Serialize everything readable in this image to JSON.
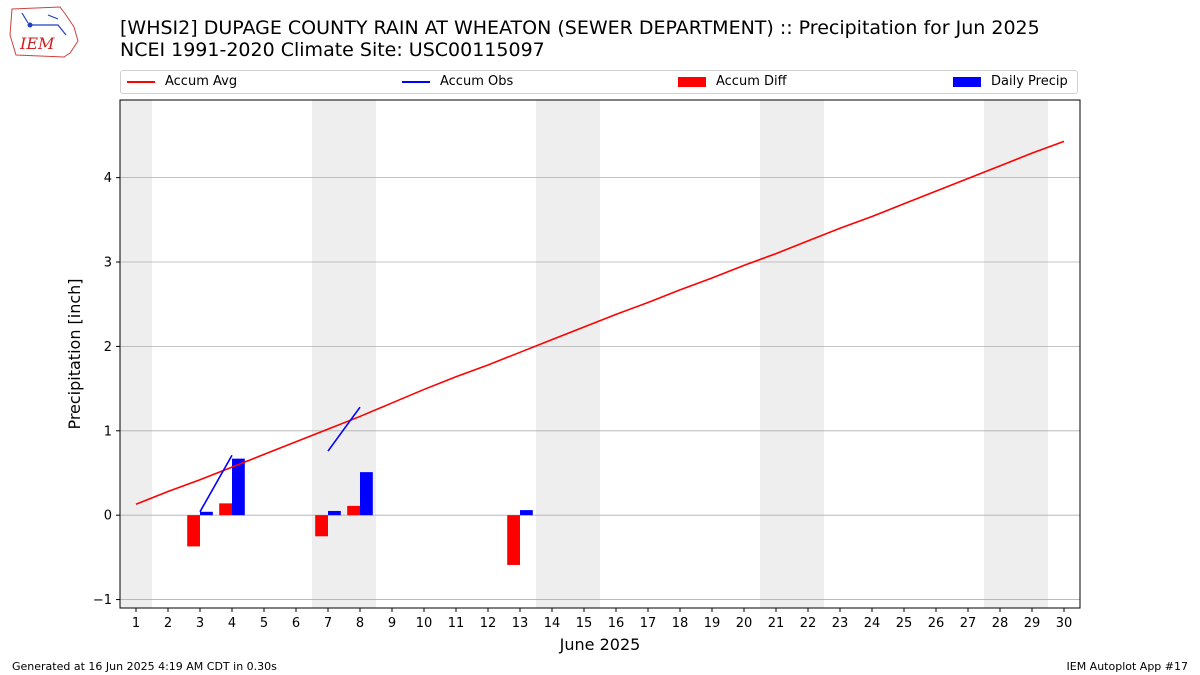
{
  "header": {
    "title_line1": "[WHSI2] DUPAGE COUNTY RAIN AT WHEATON (SEWER DEPARTMENT) :: Precipitation for Jun 2025",
    "title_line2": "NCEI 1991-2020 Climate Site: USC00115097",
    "logo_text": "IEM"
  },
  "footer": {
    "left": "Generated at 16 Jun 2025 4:19 AM CDT in 0.30s",
    "right": "IEM Autoplot App #17"
  },
  "colors": {
    "accum_avg": "#ff0000",
    "accum_obs": "#0000ff",
    "accum_diff": "#ff0000",
    "daily_precip": "#0000ff",
    "weekend_shade": "#eeeeee",
    "grid": "#b0b0b0"
  },
  "chart_data": {
    "type": "bar",
    "xlabel": "June 2025",
    "ylabel": "Precipitation [inch]",
    "xlim": [
      0.5,
      30.5
    ],
    "ylim": [
      -1.1,
      4.92
    ],
    "x_ticks": [
      1,
      2,
      3,
      4,
      5,
      6,
      7,
      8,
      9,
      10,
      11,
      12,
      13,
      14,
      15,
      16,
      17,
      18,
      19,
      20,
      21,
      22,
      23,
      24,
      25,
      26,
      27,
      28,
      29,
      30
    ],
    "y_ticks": [
      -1,
      0,
      1,
      2,
      3,
      4
    ],
    "grid": "horizontal",
    "legend": {
      "placement": "top",
      "entries": [
        {
          "label": "Accum Avg",
          "kind": "line",
          "color": "#ff0000"
        },
        {
          "label": "Accum Obs",
          "kind": "line",
          "color": "#0000ff"
        },
        {
          "label": "Accum Diff",
          "kind": "bar",
          "color": "#ff0000"
        },
        {
          "label": "Daily Precip",
          "kind": "bar",
          "color": "#0000ff"
        }
      ]
    },
    "weekend_shading": [
      [
        0.5,
        1.5
      ],
      [
        6.5,
        8.5
      ],
      [
        13.5,
        15.5
      ],
      [
        20.5,
        22.5
      ],
      [
        27.5,
        29.5
      ]
    ],
    "series": [
      {
        "name": "Accum Avg",
        "kind": "line",
        "x": [
          1,
          2,
          3,
          4,
          5,
          6,
          7,
          8,
          9,
          10,
          11,
          12,
          13,
          14,
          15,
          16,
          17,
          18,
          19,
          20,
          21,
          22,
          23,
          24,
          25,
          26,
          27,
          28,
          29,
          30
        ],
        "values": [
          0.13,
          0.28,
          0.42,
          0.57,
          0.72,
          0.87,
          1.02,
          1.17,
          1.33,
          1.49,
          1.64,
          1.78,
          1.93,
          2.08,
          2.23,
          2.38,
          2.52,
          2.67,
          2.81,
          2.96,
          3.1,
          3.25,
          3.4,
          3.54,
          3.69,
          3.84,
          3.99,
          4.14,
          4.29,
          4.43
        ]
      },
      {
        "name": "Accum Obs",
        "kind": "line",
        "segments": [
          {
            "x": [
              3,
              4
            ],
            "values": [
              0.04,
              0.71
            ]
          },
          {
            "x": [
              7,
              8
            ],
            "values": [
              0.76,
              1.28
            ]
          }
        ]
      },
      {
        "name": "Accum Diff",
        "kind": "bar",
        "x": [
          3,
          4,
          7,
          8,
          13
        ],
        "values": [
          -0.37,
          0.14,
          -0.25,
          0.11,
          -0.59
        ]
      },
      {
        "name": "Daily Precip",
        "kind": "bar",
        "x": [
          3,
          4,
          7,
          8,
          13
        ],
        "values": [
          0.04,
          0.67,
          0.05,
          0.51,
          0.06
        ]
      }
    ]
  }
}
